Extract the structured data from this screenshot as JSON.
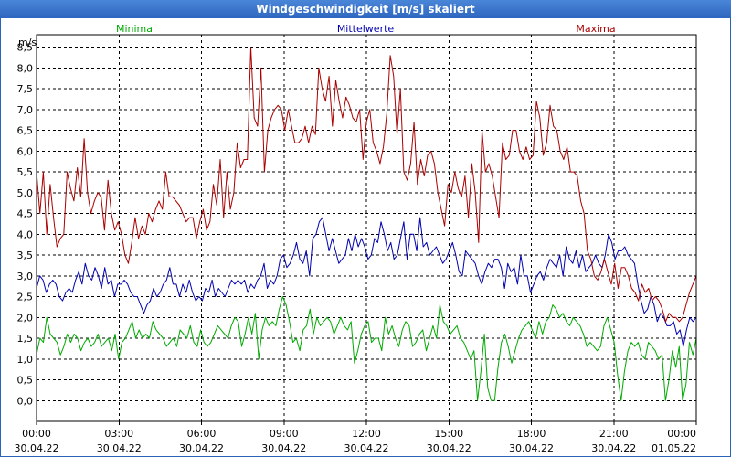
{
  "chart_data": {
    "type": "line",
    "title": "Windgeschwindigkeit [m/s] skaliert",
    "ylabel": "m/s",
    "ylim": [
      -0.5,
      8.8
    ],
    "yticks": [
      "0,0",
      "0,5",
      "1,0",
      "1,5",
      "2,0",
      "2,5",
      "3,0",
      "3,5",
      "4,0",
      "4,5",
      "5,0",
      "5,5",
      "6,0",
      "6,5",
      "7,0",
      "7,5",
      "8,0",
      "8,5"
    ],
    "ytick_values": [
      0,
      0.5,
      1,
      1.5,
      2,
      2.5,
      3,
      3.5,
      4,
      4.5,
      5,
      5.5,
      6,
      6.5,
      7,
      7.5,
      8,
      8.5
    ],
    "xlim": [
      0,
      24
    ],
    "xticks": [
      {
        "h": 0,
        "time": "00:00",
        "date": "30.04.22"
      },
      {
        "h": 3,
        "time": "03:00",
        "date": "30.04.22"
      },
      {
        "h": 6,
        "time": "06:00",
        "date": "30.04.22"
      },
      {
        "h": 9,
        "time": "09:00",
        "date": "30.04.22"
      },
      {
        "h": 12,
        "time": "12:00",
        "date": "30.04.22"
      },
      {
        "h": 15,
        "time": "15:00",
        "date": "30.04.22"
      },
      {
        "h": 18,
        "time": "18:00",
        "date": "30.04.22"
      },
      {
        "h": 21,
        "time": "21:00",
        "date": "30.04.22"
      },
      {
        "h": 24,
        "time": "00:00",
        "date": "01.05.22"
      }
    ],
    "grid": true,
    "series": [
      {
        "name": "Minima",
        "color": "#00aa00",
        "legend_pos": "left",
        "values": [
          1.1,
          1.5,
          1.4,
          2.0,
          1.6,
          1.5,
          1.4,
          1.1,
          1.3,
          1.6,
          1.4,
          1.6,
          1.5,
          1.2,
          1.4,
          1.5,
          1.3,
          1.4,
          1.6,
          1.3,
          1.4,
          1.5,
          1.2,
          1.6,
          1.0,
          1.4,
          1.5,
          1.7,
          1.9,
          1.5,
          1.7,
          1.5,
          1.6,
          1.5,
          1.9,
          1.7,
          1.6,
          1.5,
          1.3,
          1.4,
          1.5,
          1.3,
          1.7,
          1.6,
          1.5,
          1.8,
          1.4,
          1.3,
          1.7,
          1.4,
          1.3,
          1.4,
          1.6,
          1.8,
          1.7,
          1.6,
          1.5,
          1.8,
          2.0,
          1.9,
          1.3,
          1.6,
          2.0,
          1.6,
          2.1,
          1.0,
          1.7,
          2.0,
          1.8,
          1.9,
          1.8,
          2.2,
          2.5,
          2.3,
          1.9,
          1.4,
          1.5,
          1.2,
          1.7,
          1.8,
          2.2,
          1.6,
          2.0,
          1.8,
          1.9,
          2.0,
          1.9,
          1.6,
          1.8,
          2.0,
          1.8,
          1.7,
          1.9,
          0.9,
          1.2,
          1.6,
          1.8,
          1.9,
          1.4,
          1.5,
          1.5,
          1.2,
          2.0,
          1.6,
          1.8,
          1.5,
          1.3,
          1.7,
          1.9,
          1.8,
          1.3,
          1.4,
          1.6,
          1.7,
          1.2,
          1.5,
          1.8,
          1.5,
          2.3,
          1.9,
          1.8,
          1.6,
          1.7,
          1.8,
          1.5,
          1.4,
          1.2,
          1.0,
          1.2,
          0.0,
          0.7,
          1.6,
          0.3,
          0.0,
          0.0,
          0.8,
          1.4,
          1.6,
          1.3,
          0.9,
          1.2,
          1.5,
          1.7,
          1.8,
          1.9,
          1.7,
          1.5,
          1.9,
          1.6,
          1.9,
          2.0,
          2.3,
          2.2,
          2.0,
          2.1,
          1.9,
          1.8,
          2.0,
          1.9,
          1.8,
          1.6,
          1.3,
          1.4,
          1.3,
          1.2,
          1.3,
          1.8,
          2.0,
          1.7,
          1.4,
          0.6,
          0.0,
          0.7,
          1.2,
          1.4,
          1.3,
          1.4,
          1.1,
          1.0,
          1.4,
          1.3,
          1.2,
          1.0,
          1.1,
          0.0,
          0.5,
          1.2,
          0.8,
          1.3,
          0.0,
          0.4,
          1.4,
          1.1,
          1.5
        ]
      },
      {
        "name": "Mittelwerte",
        "color": "#0000b0",
        "legend_pos": "center",
        "values": [
          2.7,
          3.0,
          2.9,
          2.6,
          2.8,
          2.9,
          2.8,
          2.5,
          2.4,
          2.6,
          2.7,
          2.6,
          2.9,
          3.1,
          2.8,
          3.3,
          3.0,
          2.9,
          3.2,
          3.0,
          2.7,
          3.2,
          2.8,
          2.9,
          2.5,
          2.8,
          2.8,
          2.9,
          2.8,
          2.6,
          2.5,
          2.5,
          2.3,
          2.1,
          2.3,
          2.4,
          2.7,
          2.5,
          2.6,
          2.8,
          2.9,
          3.2,
          2.8,
          2.8,
          2.5,
          2.8,
          2.6,
          2.9,
          2.6,
          2.4,
          2.5,
          2.4,
          2.7,
          2.6,
          2.9,
          2.5,
          2.7,
          2.6,
          2.5,
          2.7,
          2.9,
          2.8,
          2.9,
          2.8,
          2.9,
          2.6,
          2.8,
          2.7,
          2.9,
          3.0,
          3.3,
          2.7,
          2.9,
          2.8,
          3.0,
          3.4,
          3.5,
          3.2,
          3.3,
          3.5,
          3.8,
          3.4,
          3.3,
          3.6,
          3.0,
          3.9,
          4.0,
          4.3,
          4.4,
          4.0,
          3.6,
          3.9,
          3.6,
          3.3,
          3.4,
          3.5,
          3.9,
          3.6,
          4.0,
          3.7,
          3.9,
          3.7,
          3.4,
          3.5,
          3.9,
          3.8,
          4.3,
          4.0,
          3.6,
          3.8,
          3.4,
          3.5,
          3.9,
          4.3,
          3.4,
          4.0,
          4.0,
          3.6,
          4.4,
          3.7,
          3.8,
          3.5,
          3.6,
          3.7,
          3.5,
          3.3,
          3.4,
          3.6,
          3.8,
          3.5,
          3.1,
          3.0,
          3.6,
          3.5,
          3.4,
          3.3,
          3.0,
          2.8,
          3.1,
          3.3,
          3.2,
          3.4,
          3.4,
          3.2,
          2.7,
          3.3,
          3.1,
          3.2,
          2.8,
          3.5,
          3.0,
          3.0,
          2.6,
          2.8,
          3.0,
          3.1,
          2.9,
          3.2,
          3.4,
          3.3,
          3.2,
          3.5,
          3.0,
          3.7,
          3.4,
          3.3,
          3.6,
          3.2,
          3.5,
          3.1,
          3.2,
          3.3,
          3.5,
          3.3,
          3.2,
          3.5,
          4.0,
          3.8,
          3.4,
          3.6,
          3.6,
          3.7,
          3.5,
          3.4,
          3.3,
          2.8,
          2.4,
          2.1,
          2.2,
          2.5,
          2.3,
          1.9,
          2.1,
          2.0,
          1.8,
          1.8,
          1.9,
          1.6,
          1.7,
          1.3,
          1.7,
          2.0,
          1.9,
          2.0
        ]
      },
      {
        "name": "Maxima",
        "color": "#aa0000",
        "legend_pos": "right",
        "values": [
          5.5,
          4.5,
          5.5,
          4.0,
          5.2,
          4.4,
          3.7,
          3.9,
          4.0,
          5.5,
          5.1,
          4.8,
          5.6,
          4.9,
          6.3,
          5.0,
          4.5,
          4.8,
          5.0,
          4.9,
          4.1,
          5.3,
          4.5,
          4.1,
          4.3,
          4.0,
          3.5,
          3.3,
          3.8,
          4.4,
          3.9,
          4.2,
          4.0,
          4.5,
          4.3,
          4.6,
          4.8,
          4.6,
          5.5,
          4.9,
          4.9,
          4.8,
          4.7,
          4.5,
          4.3,
          4.4,
          4.4,
          3.9,
          4.3,
          4.6,
          4.1,
          4.3,
          5.2,
          4.7,
          5.8,
          4.4,
          5.5,
          4.6,
          5.0,
          6.2,
          5.6,
          5.8,
          5.8,
          8.5,
          6.8,
          6.6,
          8.0,
          5.5,
          6.5,
          6.8,
          7.0,
          7.1,
          7.0,
          6.5,
          7.0,
          6.6,
          6.2,
          6.2,
          6.3,
          6.6,
          6.2,
          6.6,
          6.4,
          8.0,
          7.5,
          7.2,
          7.8,
          6.6,
          7.7,
          7.2,
          6.8,
          7.3,
          7.1,
          6.8,
          6.7,
          7.0,
          5.8,
          6.7,
          7.0,
          6.2,
          6.0,
          5.7,
          6.1,
          6.9,
          8.3,
          7.8,
          6.4,
          7.5,
          5.5,
          5.3,
          5.7,
          6.7,
          5.2,
          5.8,
          5.4,
          5.9,
          6.0,
          5.7,
          5.0,
          4.6,
          4.2,
          5.2,
          5.0,
          5.5,
          5.1,
          4.9,
          5.4,
          4.4,
          5.7,
          5.0,
          3.8,
          6.5,
          5.5,
          5.7,
          5.4,
          4.9,
          4.4,
          6.2,
          5.8,
          5.9,
          6.5,
          6.5,
          6.0,
          5.8,
          6.1,
          5.8,
          5.9,
          7.2,
          6.8,
          5.9,
          6.2,
          7.1,
          6.6,
          6.5,
          6.0,
          5.8,
          6.1,
          5.5,
          5.5,
          5.4,
          4.8,
          4.5,
          3.6,
          3.4,
          3.0,
          2.9,
          3.1,
          3.4,
          3.1,
          2.8,
          3.3,
          2.7,
          3.2,
          3.2,
          3.0,
          2.7,
          2.6,
          2.4,
          2.8,
          2.6,
          2.7,
          2.4,
          2.5,
          2.4,
          2.2,
          1.9,
          2.1,
          2.0,
          2.0,
          1.9,
          2.0,
          2.3,
          2.6,
          2.8,
          3.0
        ]
      }
    ]
  }
}
